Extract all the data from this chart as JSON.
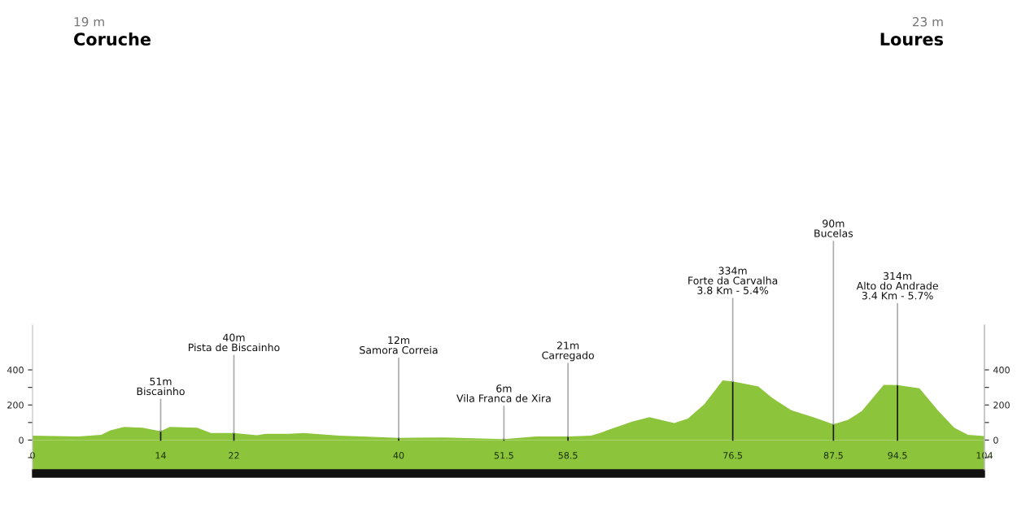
{
  "chart_data": {
    "type": "area",
    "title": "Coruche",
    "subtitle": "19 m",
    "annotations": [
      "Loures",
      "23 m",
      {
        "text": "51m\nBiscainho",
        "x": 14,
        "y": 51
      },
      {
        "text": "40m\nPista de Biscainho",
        "x": 22,
        "y": 40
      },
      {
        "text": "12m\nSamora Correia",
        "x": 40,
        "y": 12
      },
      {
        "text": "6m\nVila Franca de Xira",
        "x": 51.5,
        "y": 6
      },
      {
        "text": "21m\nCarregado",
        "x": 58.5,
        "y": 21
      },
      {
        "text": "334m\nForte da Carvalha\n3.8 Km - 5.4%",
        "x": 76.5,
        "y": 334
      },
      {
        "text": "90m\nBucelas",
        "x": 87.5,
        "y": 90
      },
      {
        "text": "314m\nAlto do Andrade\n3.4 Km - 5.7%",
        "x": 94.5,
        "y": 314
      }
    ],
    "x": [
      0,
      5,
      7.5,
      8.5,
      10,
      12,
      14,
      15,
      18,
      19.5,
      22,
      24.5,
      25.5,
      28,
      29.6,
      33.5,
      36,
      40,
      45,
      51.5,
      55,
      58.5,
      61,
      62,
      63,
      65.5,
      67.4,
      70.1,
      71.6,
      73.4,
      75.4,
      76.5,
      79.3,
      80.8,
      82.9,
      85.3,
      87.1,
      87.5,
      89.1,
      90.6,
      93,
      94.5,
      96.9,
      98.9,
      100.7,
      102.2,
      104
    ],
    "series": [
      {
        "color": "#8cc43c",
        "values": [
          25,
          20,
          30,
          55,
          75,
          70,
          51,
          75,
          70,
          40,
          40,
          28,
          35,
          35,
          40,
          25,
          20,
          12,
          15,
          6,
          20,
          21,
          25,
          40,
          60,
          105,
          130,
          97,
          122,
          205,
          340,
          334,
          305,
          240,
          170,
          130,
          97,
          90,
          115,
          165,
          315,
          314,
          295,
          170,
          70,
          30,
          23
        ]
      }
    ],
    "xlim": [
      0,
      104
    ],
    "xticks": [
      0,
      14,
      22,
      40,
      51.5,
      58.5,
      76.5,
      87.5,
      94.5,
      104
    ],
    "ylim": [
      -170,
      655
    ],
    "yticks": [
      {
        "value": -100,
        "label": null
      },
      0,
      {
        "value": 100,
        "label": null
      },
      200,
      {
        "value": 300,
        "label": null
      },
      400
    ],
    "y2lim": [
      -170,
      655
    ],
    "y2ticks": [
      {
        "value": -100,
        "label": null
      },
      0,
      {
        "value": 100,
        "label": null
      },
      200,
      {
        "value": 300,
        "label": null
      },
      400
    ],
    "grid": false,
    "legend": false
  }
}
